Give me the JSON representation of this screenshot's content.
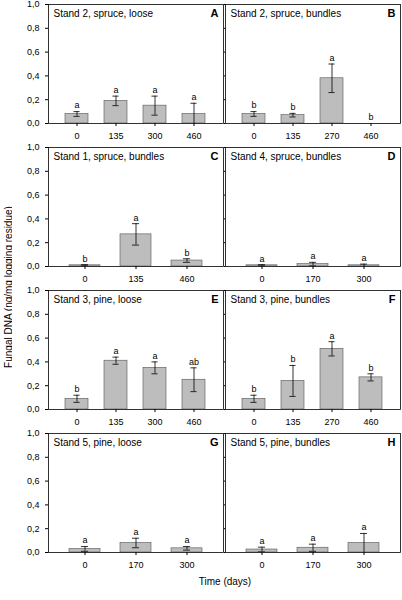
{
  "x_label": "Time (days)",
  "y_label": "Fungal DNA (ng/mg logging residue)",
  "chart_data": [
    {
      "type": "bar",
      "title": "Stand 2, spruce, loose",
      "panel_label": "A",
      "color": "#bdbdbd",
      "categories": [
        0,
        135,
        300,
        460
      ],
      "values": [
        0.08,
        0.19,
        0.15,
        0.08
      ],
      "errors": [
        0.02,
        0.04,
        0.08,
        0.09
      ],
      "letters": [
        "a",
        "a",
        "a",
        "a"
      ],
      "ylim": [
        0,
        1
      ],
      "yticks": [
        {
          "value": 0,
          "label": "0,0"
        },
        {
          "value": 0.2,
          "label": "0,2"
        },
        {
          "value": 0.4,
          "label": "0,4"
        },
        {
          "value": 0.6,
          "label": "0,6"
        },
        {
          "value": 0.8,
          "label": "0,8"
        },
        {
          "value": 1,
          "label": "1,0"
        }
      ]
    },
    {
      "type": "bar",
      "title": "Stand 2, spruce, bundles",
      "panel_label": "B",
      "color": "#bdbdbd",
      "tick_labels": "x",
      "categories": [
        0,
        135,
        270,
        460
      ],
      "values": [
        0.08,
        0.07,
        0.38,
        0
      ],
      "errors": [
        0.02,
        0.015,
        0.12,
        0
      ],
      "letters": [
        "b",
        "b",
        "a",
        "b"
      ],
      "ylim": [
        0,
        1
      ],
      "yticks": [
        0,
        0.2,
        0.4,
        0.6,
        0.8,
        1
      ]
    },
    {
      "type": "bar",
      "title": "Stand 1, spruce, bundles",
      "panel_label": "C",
      "color": "#bdbdbd",
      "categories": [
        0,
        135,
        460
      ],
      "values": [
        0.01,
        0.27,
        0.05
      ],
      "errors": [
        0.005,
        0.09,
        0.015
      ],
      "letters": [
        "b",
        "a",
        "b"
      ],
      "ylim": [
        0,
        1
      ],
      "yticks": [
        {
          "value": 0,
          "label": "0,0"
        },
        {
          "value": 0.2,
          "label": "0,2"
        },
        {
          "value": 0.4,
          "label": "0,4"
        },
        {
          "value": 0.6,
          "label": "0,6"
        },
        {
          "value": 0.8,
          "label": "0,8"
        },
        {
          "value": 1,
          "label": "1,0"
        }
      ]
    },
    {
      "type": "bar",
      "title": "Stand 4, spruce, bundles",
      "panel_label": "D",
      "color": "#bdbdbd",
      "tick_labels": "x",
      "categories": [
        0,
        170,
        300
      ],
      "values": [
        0.01,
        0.02,
        0.01
      ],
      "errors": [
        0.005,
        0.015,
        0.01
      ],
      "letters": [
        "a",
        "a",
        "a"
      ],
      "ylim": [
        0,
        1
      ],
      "yticks": [
        0,
        0.2,
        0.4,
        0.6,
        0.8,
        1
      ]
    },
    {
      "type": "bar",
      "title": "Stand 3, pine, loose",
      "panel_label": "E",
      "color": "#bdbdbd",
      "categories": [
        0,
        135,
        300,
        460
      ],
      "values": [
        0.09,
        0.41,
        0.35,
        0.25
      ],
      "errors": [
        0.03,
        0.03,
        0.05,
        0.1
      ],
      "letters": [
        "b",
        "a",
        "a",
        "ab"
      ],
      "ylim": [
        0,
        1
      ],
      "yticks": [
        {
          "value": 0,
          "label": "0,0"
        },
        {
          "value": 0.2,
          "label": "0,2"
        },
        {
          "value": 0.4,
          "label": "0,4"
        },
        {
          "value": 0.6,
          "label": "0,6"
        },
        {
          "value": 0.8,
          "label": "0,8"
        },
        {
          "value": 1,
          "label": "1,0"
        }
      ]
    },
    {
      "type": "bar",
      "title": "Stand 3, pine, bundles",
      "panel_label": "F",
      "color": "#bdbdbd",
      "tick_labels": "x",
      "categories": [
        0,
        135,
        270,
        460
      ],
      "values": [
        0.09,
        0.24,
        0.51,
        0.27
      ],
      "errors": [
        0.03,
        0.13,
        0.06,
        0.03
      ],
      "letters": [
        "b",
        "b",
        "a",
        "b"
      ],
      "ylim": [
        0,
        1
      ],
      "yticks": [
        0,
        0.2,
        0.4,
        0.6,
        0.8,
        1
      ]
    },
    {
      "type": "bar",
      "title": "Stand 5, pine, loose",
      "panel_label": "G",
      "color": "#bdbdbd",
      "categories": [
        0,
        170,
        300
      ],
      "values": [
        0.03,
        0.08,
        0.035
      ],
      "errors": [
        0.02,
        0.04,
        0.015
      ],
      "letters": [
        "a",
        "a",
        "a"
      ],
      "ylim": [
        0,
        1
      ],
      "yticks": [
        {
          "value": 0,
          "label": "0,0"
        },
        {
          "value": 0.2,
          "label": "0,2"
        },
        {
          "value": 0.4,
          "label": "0,4"
        },
        {
          "value": 0.6,
          "label": "0,6"
        },
        {
          "value": 0.8,
          "label": "0,8"
        },
        {
          "value": 1,
          "label": "1,0"
        }
      ]
    },
    {
      "type": "bar",
      "title": "Stand 5, pine, bundles",
      "panel_label": "H",
      "color": "#bdbdbd",
      "tick_labels": "x",
      "categories": [
        0,
        170,
        300
      ],
      "values": [
        0.025,
        0.04,
        0.08
      ],
      "errors": [
        0.02,
        0.03,
        0.08
      ],
      "letters": [
        "a",
        "a",
        "a"
      ],
      "ylim": [
        0,
        1
      ],
      "yticks": [
        0,
        0.2,
        0.4,
        0.6,
        0.8,
        1
      ]
    }
  ]
}
